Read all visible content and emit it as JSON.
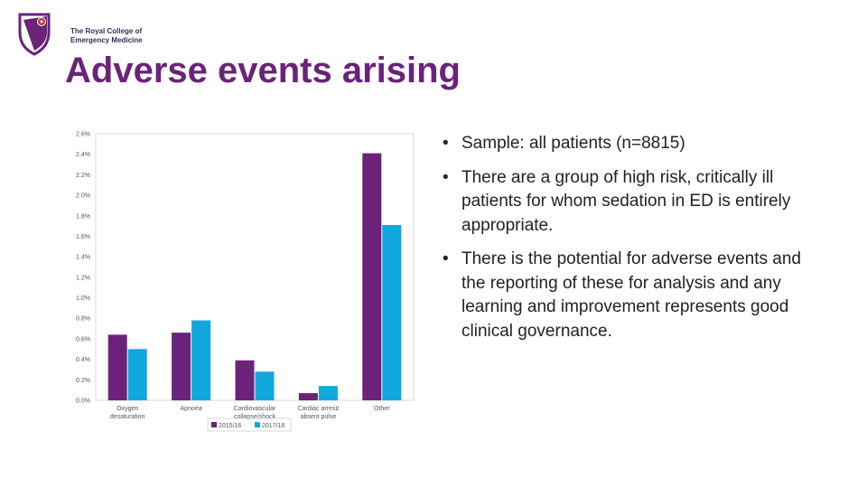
{
  "logo": {
    "line1": "The Royal College of",
    "line2": "Emergency Medicine"
  },
  "slide": {
    "title": "Adverse events arising",
    "bullets": [
      "Sample: all patients (n=8815)",
      "There are a group of high risk, critically ill patients for whom sedation in ED is entirely appropriate.",
      "There is the potential for adverse events and the reporting of these for analysis and any learning and improvement represents good clinical governance."
    ]
  },
  "colors": {
    "primary": "#6a2379",
    "series1": "#6a2379",
    "series2": "#10a8dc"
  },
  "chart_data": {
    "type": "bar",
    "title": "",
    "xlabel": "",
    "ylabel": "",
    "categories": [
      [
        "Oxygen",
        "desaturation"
      ],
      [
        "Apnoea"
      ],
      [
        "Cardiovascular",
        "collapse/shock"
      ],
      [
        "Cardiac arrest/",
        "absent pulse"
      ],
      [
        "Other"
      ]
    ],
    "series": [
      {
        "name": "2015/16",
        "values": [
          0.64,
          0.66,
          0.39,
          0.07,
          2.41
        ]
      },
      {
        "name": "2017/18",
        "values": [
          0.5,
          0.78,
          0.28,
          0.14,
          1.71
        ]
      }
    ],
    "ylim": [
      0,
      2.6
    ],
    "yticks": [
      0,
      0.2,
      0.4,
      0.6,
      0.8,
      1.0,
      1.2,
      1.4,
      1.6,
      1.8,
      2.0,
      2.2,
      2.4,
      2.6
    ],
    "ytick_labels": [
      "0.0%",
      "0.2%",
      "0.4%",
      "0.6%",
      "0.8%",
      "1.0%",
      "1.2%",
      "1.4%",
      "1.6%",
      "1.8%",
      "2.0%",
      "2.2%",
      "2.4%",
      "2.6%"
    ],
    "grid": false,
    "legend": "bottom"
  }
}
